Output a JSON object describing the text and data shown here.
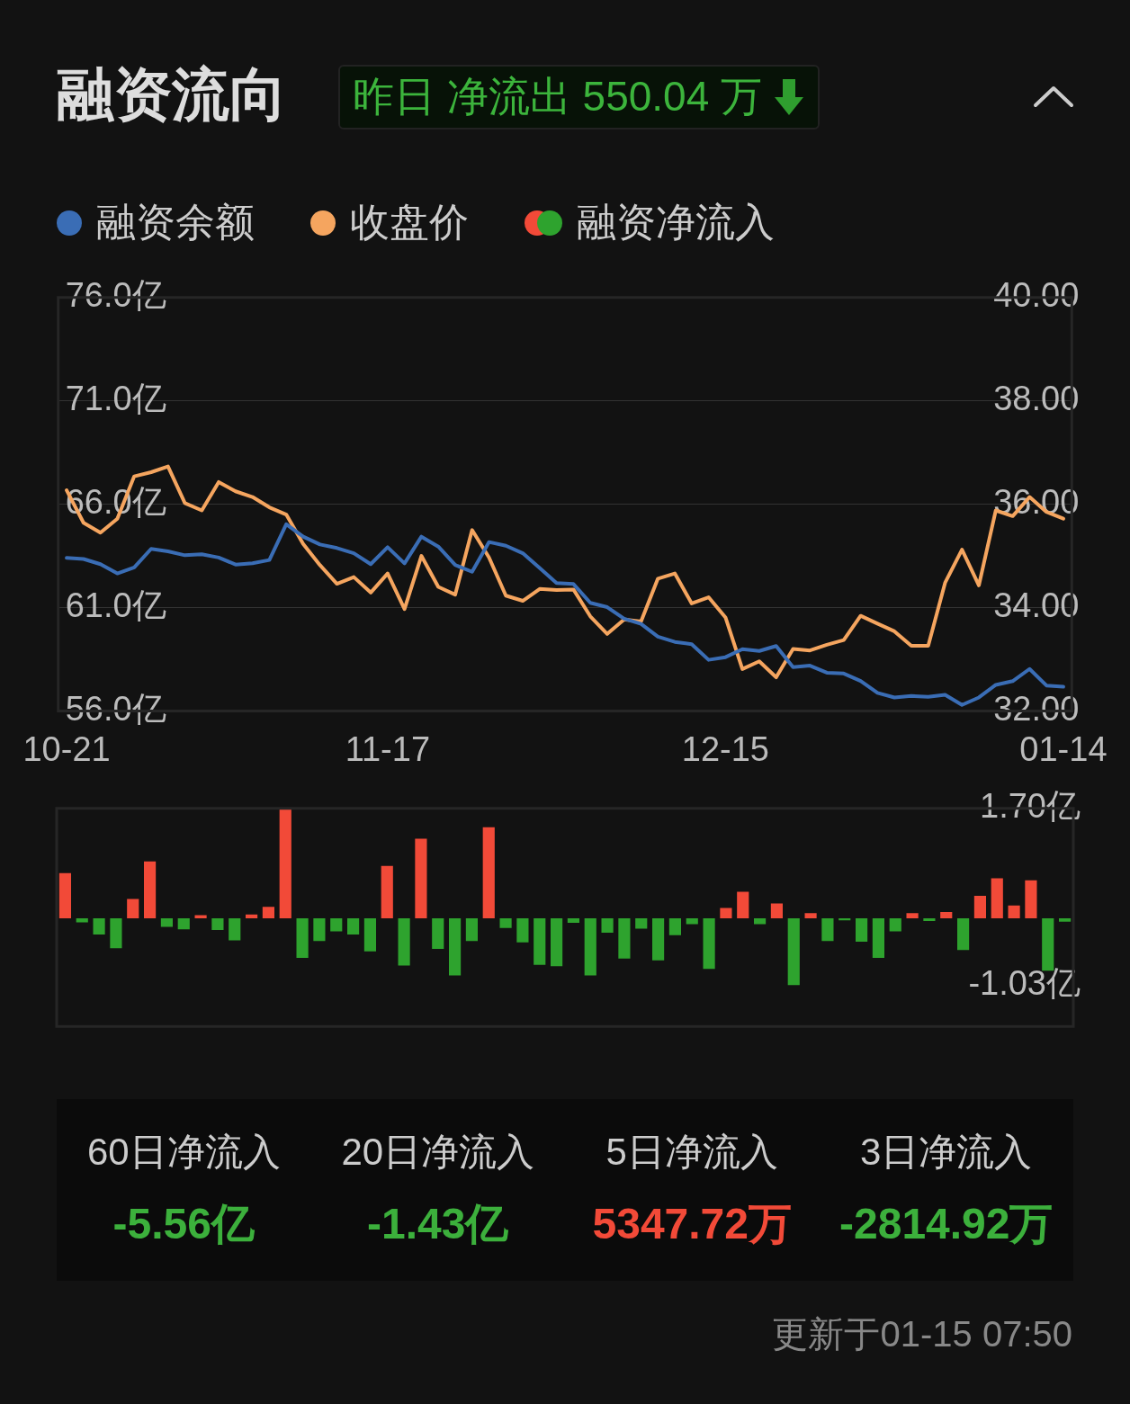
{
  "chart_data": [
    {
      "type": "line",
      "title": "融资流向",
      "subtitle": "昨日 净流出 550.04 万",
      "legend": "top left",
      "grid": "y",
      "categories": [
        "10-21",
        null,
        null,
        null,
        null,
        null,
        null,
        null,
        null,
        null,
        null,
        null,
        null,
        null,
        null,
        null,
        null,
        null,
        null,
        "11-17",
        null,
        null,
        null,
        null,
        null,
        null,
        null,
        null,
        null,
        null,
        null,
        null,
        null,
        null,
        null,
        null,
        null,
        null,
        null,
        "12-15",
        null,
        null,
        null,
        null,
        null,
        null,
        null,
        null,
        null,
        null,
        null,
        null,
        null,
        null,
        null,
        null,
        null,
        null,
        null,
        "01-14"
      ],
      "ylim": [
        56,
        76
      ],
      "yticks": [
        {
          "value": 56,
          "label": "56.0亿"
        },
        {
          "value": 61,
          "label": "61.0亿"
        },
        {
          "value": 66,
          "label": "66.0亿"
        },
        {
          "value": 71,
          "label": "71.0亿"
        },
        {
          "value": 76,
          "label": "76.0亿"
        }
      ],
      "y2lim": [
        32,
        40
      ],
      "y2ticks": [
        {
          "value": 32,
          "label": "32.00"
        },
        {
          "value": 34,
          "label": "34.00"
        },
        {
          "value": 36,
          "label": "36.00"
        },
        {
          "value": 38,
          "label": "38.00"
        },
        {
          "value": 40,
          "label": "40.00"
        }
      ],
      "series": [
        {
          "name": "融资余额",
          "color": "#3a6db5",
          "values": [
            63.4,
            63.35,
            63.1,
            62.65,
            62.94,
            63.84,
            63.72,
            63.53,
            63.58,
            63.42,
            63.08,
            63.14,
            63.3,
            65.03,
            64.43,
            64.05,
            63.88,
            63.63,
            63.1,
            63.92,
            63.14,
            64.43,
            63.95,
            63.06,
            62.73,
            64.17,
            63.99,
            63.63,
            62.91,
            62.19,
            62.14,
            61.23,
            61.02,
            60.46,
            60.21,
            59.59,
            59.34,
            59.23,
            58.47,
            58.6,
            58.99,
            58.9,
            59.14,
            58.12,
            58.19,
            57.85,
            57.81,
            57.45,
            56.87,
            56.65,
            56.72,
            56.68,
            56.78,
            56.29,
            56.65,
            57.26,
            57.44,
            58.03,
            57.23,
            57.17
          ]
        },
        {
          "name": "收盘价",
          "color": "#f5a55f",
          "axis": "y2",
          "values": [
            36.27,
            35.64,
            35.45,
            35.72,
            36.54,
            36.62,
            36.73,
            36.02,
            35.88,
            36.43,
            36.25,
            36.14,
            35.94,
            35.8,
            35.23,
            34.82,
            34.46,
            34.59,
            34.29,
            34.66,
            33.97,
            35.0,
            34.4,
            34.25,
            35.5,
            34.97,
            34.23,
            34.13,
            34.36,
            34.34,
            34.35,
            33.83,
            33.49,
            33.77,
            33.73,
            34.56,
            34.66,
            34.08,
            34.2,
            33.81,
            32.81,
            32.96,
            32.65,
            33.2,
            33.17,
            33.28,
            33.37,
            33.84,
            33.69,
            33.54,
            33.26,
            33.26,
            34.48,
            35.12,
            34.43,
            35.88,
            35.77,
            36.14,
            35.85,
            35.72
          ]
        }
      ]
    },
    {
      "type": "bar",
      "legend": "top",
      "tick_labels": "y",
      "categories": [
        null,
        null,
        null,
        null,
        null,
        null,
        null,
        null,
        null,
        null,
        null,
        null,
        null,
        null,
        null,
        null,
        null,
        null,
        null,
        null,
        null,
        null,
        null,
        null,
        null,
        null,
        null,
        null,
        null,
        null,
        null,
        null,
        null,
        null,
        null,
        null,
        null,
        null,
        null,
        null,
        null,
        null,
        null,
        null,
        null,
        null,
        null,
        null,
        null,
        null,
        null,
        null,
        null,
        null,
        null,
        null,
        null,
        null,
        null,
        null
      ],
      "ylim": [
        -1.67,
        1.7
      ],
      "yticks": [
        {
          "value": -1.03,
          "label": "-1.03亿"
        },
        {
          "value": 1.7,
          "label": "1.70亿"
        }
      ],
      "series": [
        {
          "name": "融资净流入",
          "values": [
            0.7,
            -0.06,
            -0.25,
            -0.46,
            0.3,
            0.88,
            -0.13,
            -0.17,
            0.05,
            -0.18,
            -0.34,
            0.06,
            0.18,
            1.7,
            -0.61,
            -0.35,
            -0.2,
            -0.25,
            -0.51,
            0.81,
            -0.73,
            1.23,
            -0.47,
            -0.88,
            -0.35,
            1.41,
            -0.15,
            -0.37,
            -0.72,
            -0.74,
            -0.07,
            -0.88,
            -0.22,
            -0.62,
            -0.16,
            -0.65,
            -0.26,
            -0.09,
            -0.78,
            0.16,
            0.41,
            -0.09,
            0.23,
            -1.03,
            0.08,
            -0.35,
            -0.03,
            -0.36,
            -0.61,
            -0.2,
            0.08,
            -0.04,
            0.1,
            -0.49,
            0.35,
            0.62,
            0.2,
            0.59,
            -0.81,
            -0.05
          ],
          "colors": [
            "#f24a38",
            "#2ea32e",
            "#2ea32e",
            "#2ea32e",
            "#f24a38",
            "#f24a38",
            "#2ea32e",
            "#2ea32e",
            "#f24a38",
            "#2ea32e",
            "#2ea32e",
            "#f24a38",
            "#f24a38",
            "#f24a38",
            "#2ea32e",
            "#2ea32e",
            "#2ea32e",
            "#2ea32e",
            "#2ea32e",
            "#f24a38",
            "#2ea32e",
            "#f24a38",
            "#2ea32e",
            "#2ea32e",
            "#2ea32e",
            "#f24a38",
            "#2ea32e",
            "#2ea32e",
            "#2ea32e",
            "#2ea32e",
            "#2ea32e",
            "#2ea32e",
            "#2ea32e",
            "#2ea32e",
            "#2ea32e",
            "#2ea32e",
            "#2ea32e",
            "#2ea32e",
            "#2ea32e",
            "#f24a38",
            "#f24a38",
            "#2ea32e",
            "#f24a38",
            "#2ea32e",
            "#f24a38",
            "#2ea32e",
            "#2ea32e",
            "#2ea32e",
            "#2ea32e",
            "#2ea32e",
            "#f24a38",
            "#2ea32e",
            "#f24a38",
            "#2ea32e",
            "#f24a38",
            "#f24a38",
            "#f24a38",
            "#f24a38",
            "#2ea32e",
            "#2ea32e"
          ]
        }
      ]
    },
    {
      "type": "other",
      "annotations": [
        "60日净流入",
        "-5.56亿",
        "20日净流入",
        "-1.43亿",
        "5日净流入",
        "5347.72万",
        "3日净流入",
        "-2814.92万",
        "更新于01-15 07:50"
      ]
    }
  ]
}
